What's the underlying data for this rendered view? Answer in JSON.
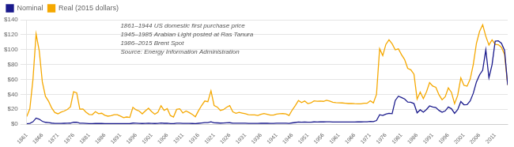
{
  "chart_data": {
    "type": "line",
    "annotations": [
      "1861–1944 US domestic first purchase price",
      "1945–1985 Arabian Light posted at Ras Tanura",
      "1986–2015 Brent Spot",
      "Source: Energy Information Administration"
    ],
    "legend": "upper left",
    "grid": "y",
    "xlim": [
      1861,
      2015
    ],
    "xticks": [
      1861,
      1866,
      1871,
      1876,
      1881,
      1886,
      1891,
      1896,
      1901,
      1906,
      1911,
      1916,
      1921,
      1926,
      1931,
      1936,
      1941,
      1946,
      1951,
      1956,
      1961,
      1966,
      1971,
      1976,
      1981,
      1986,
      1991,
      1996,
      2001,
      2006,
      2011
    ],
    "ylim": [
      0,
      140
    ],
    "yticks": [
      {
        "value": 0,
        "label": "$0"
      },
      {
        "value": 20,
        "label": "$20"
      },
      {
        "value": 40,
        "label": "$40"
      },
      {
        "value": 60,
        "label": "$60"
      },
      {
        "value": 80,
        "label": "$80"
      },
      {
        "value": 100,
        "label": "$100"
      },
      {
        "value": 120,
        "label": "$120"
      },
      {
        "value": 140,
        "label": "$140"
      }
    ],
    "x": [
      1861,
      1862,
      1863,
      1864,
      1865,
      1866,
      1867,
      1868,
      1869,
      1870,
      1871,
      1872,
      1873,
      1874,
      1875,
      1876,
      1877,
      1878,
      1879,
      1880,
      1881,
      1882,
      1883,
      1884,
      1885,
      1886,
      1887,
      1888,
      1889,
      1890,
      1891,
      1892,
      1893,
      1894,
      1895,
      1896,
      1897,
      1898,
      1899,
      1900,
      1901,
      1902,
      1903,
      1904,
      1905,
      1906,
      1907,
      1908,
      1909,
      1910,
      1911,
      1912,
      1913,
      1914,
      1915,
      1916,
      1917,
      1918,
      1919,
      1920,
      1921,
      1922,
      1923,
      1924,
      1925,
      1926,
      1927,
      1928,
      1929,
      1930,
      1931,
      1932,
      1933,
      1934,
      1935,
      1936,
      1937,
      1938,
      1939,
      1940,
      1941,
      1942,
      1943,
      1944,
      1945,
      1946,
      1947,
      1948,
      1949,
      1950,
      1951,
      1952,
      1953,
      1954,
      1955,
      1956,
      1957,
      1958,
      1959,
      1960,
      1961,
      1962,
      1963,
      1964,
      1965,
      1966,
      1967,
      1968,
      1969,
      1970,
      1971,
      1972,
      1973,
      1974,
      1975,
      1976,
      1977,
      1978,
      1979,
      1980,
      1981,
      1982,
      1983,
      1984,
      1985,
      1986,
      1987,
      1988,
      1989,
      1990,
      1991,
      1992,
      1993,
      1994,
      1995,
      1996,
      1997,
      1998,
      1999,
      2000,
      2001,
      2002,
      2003,
      2004,
      2005,
      2006,
      2007,
      2008,
      2009,
      2010,
      2011,
      2012,
      2013,
      2014,
      2015
    ],
    "series": [
      {
        "name": "Nominal",
        "color": "#1a1a8c",
        "values": [
          0.49,
          1.05,
          3.15,
          8.06,
          6.59,
          3.74,
          2.41,
          1.98,
          1.35,
          0.96,
          0.87,
          1.0,
          1.07,
          1.17,
          1.35,
          2.56,
          2.42,
          1.17,
          1.19,
          0.95,
          0.79,
          0.78,
          0.99,
          0.84,
          0.88,
          0.73,
          0.67,
          0.7,
          0.77,
          0.77,
          0.67,
          0.56,
          0.6,
          0.56,
          1.36,
          1.19,
          1.05,
          0.8,
          1.01,
          1.19,
          0.96,
          0.8,
          0.94,
          1.4,
          1.08,
          1.2,
          0.72,
          0.61,
          1.15,
          1.19,
          0.9,
          1.05,
          0.95,
          0.81,
          0.64,
          1.1,
          1.56,
          1.98,
          2.01,
          3.07,
          1.73,
          1.61,
          1.34,
          1.43,
          1.68,
          1.88,
          1.3,
          1.17,
          1.27,
          1.19,
          1.14,
          1.04,
          1.02,
          1.03,
          0.97,
          1.09,
          1.18,
          1.1,
          1.02,
          1.02,
          1.14,
          1.19,
          1.22,
          1.21,
          1.05,
          1.63,
          2.16,
          2.77,
          2.57,
          2.77,
          2.53,
          2.64,
          2.92,
          2.89,
          2.93,
          2.94,
          3.09,
          3.01,
          2.9,
          2.88,
          2.89,
          2.9,
          2.89,
          2.88,
          2.9,
          2.9,
          2.92,
          2.97,
          3.09,
          3.18,
          3.6,
          3.39,
          4.75,
          12.52,
          11.53,
          13.48,
          14.4,
          14.02,
          31.61,
          37.42,
          35.75,
          33.65,
          29.55,
          29.39,
          27.53,
          15.1,
          19.17,
          15.97,
          19.68,
          24.47,
          23.0,
          22.27,
          18.43,
          15.82,
          17.7,
          22.88,
          20.61,
          14.39,
          19.34,
          30.26,
          25.93,
          26.1,
          31.08,
          41.49,
          56.59,
          66.05,
          72.34,
          99.67,
          62.09,
          79.61,
          111.26,
          111.67,
          108.56,
          99.02,
          52.39
        ]
      },
      {
        "name": "Real (2015 dollars)",
        "color": "#f5a800",
        "values": [
          10.06,
          20.69,
          60.1,
          121.02,
          98.62,
          56.62,
          37.24,
          30.62,
          21.54,
          15.53,
          13.86,
          16.02,
          17.51,
          19.69,
          23.11,
          43.46,
          41.99,
          20.09,
          20.37,
          15.94,
          12.88,
          12.67,
          16.74,
          13.92,
          14.62,
          11.83,
          10.67,
          11.32,
          12.64,
          12.64,
          10.73,
          8.68,
          9.56,
          8.95,
          22.46,
          19.23,
          17.52,
          13.72,
          17.75,
          21.27,
          16.69,
          13.36,
          15.99,
          24.61,
          18.55,
          20.78,
          11.53,
          9.56,
          19.73,
          20.5,
          14.88,
          17.49,
          15.55,
          13.05,
          9.92,
          17.88,
          24.93,
          30.98,
          29.98,
          44.64,
          24.95,
          22.9,
          18.35,
          19.44,
          22.56,
          24.83,
          16.35,
          14.48,
          15.77,
          14.78,
          13.85,
          12.6,
          12.35,
          12.43,
          11.59,
          13.21,
          14.29,
          13.26,
          12.15,
          12.09,
          13.52,
          13.89,
          14.06,
          13.73,
          11.59,
          18.81,
          24.85,
          31.55,
          28.81,
          30.97,
          27.53,
          28.39,
          31.13,
          30.68,
          30.86,
          30.5,
          31.99,
          30.89,
          29.27,
          28.76,
          28.56,
          28.41,
          28.0,
          27.62,
          27.75,
          27.36,
          27.22,
          27.24,
          27.89,
          27.97,
          31.25,
          28.5,
          39.82,
          101.17,
          91.93,
          106.94,
          113.02,
          107.83,
          99.64,
          100.97,
          93.27,
          86.6,
          74.73,
          72.88,
          66.95,
          33.51,
          42.93,
          34.32,
          43.26,
          55.59,
          51.1,
          49.36,
          39.36,
          32.72,
          36.76,
          48.58,
          42.51,
          27.44,
          38.55,
          62.0,
          52.0,
          50.85,
          60.4,
          80.28,
          108.43,
          124.32,
          133.29,
          117.87,
          106.15,
          112.98,
          107.07,
          106.54,
          103.27,
          93.56,
          52.39
        ]
      }
    ]
  }
}
